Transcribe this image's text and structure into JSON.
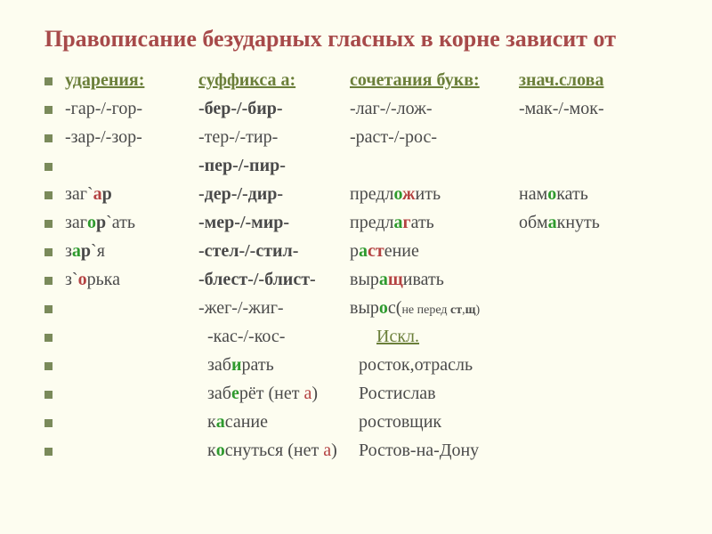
{
  "title": "Правописание безударных гласных в корне зависит от",
  "colors": {
    "background": "#fdfdf0",
    "title": "#a74a4a",
    "bullet": "#7a8a5a",
    "olive": "#6b7f3a",
    "red": "#b44242",
    "green": "#2e9a2e",
    "text": "#4a4a4a"
  },
  "fontsize": {
    "title": 26,
    "body": 20,
    "sub": 14
  },
  "header": {
    "c1": "ударения:",
    "c2": "суффикса а:",
    "c3": "сочетания букв:",
    "c4": "знач.слова"
  },
  "rows": [
    {
      "c1": [
        {
          "t": "-гар-/-гор-"
        }
      ],
      "c2": [
        {
          "t": "-бер-/-бир-",
          "cls": "bold"
        }
      ],
      "c3": [
        {
          "t": "-лаг-/-лож-"
        }
      ],
      "c4": [
        {
          "t": "-мак-/-мок-"
        }
      ]
    },
    {
      "c1": [
        {
          "t": "-зар-/-зор-"
        }
      ],
      "c2": [
        {
          "t": "-тер-/-тир-"
        }
      ],
      "c3": [
        {
          "t": "-раст-/-рос-"
        }
      ],
      "c4": []
    },
    {
      "c1": [],
      "c2": [
        {
          "t": "-пер-/-пир-",
          "cls": "bold"
        }
      ],
      "c3": [],
      "c4": []
    },
    {
      "c1": [
        {
          "t": "заг`"
        },
        {
          "t": "а",
          "cls": "redb"
        },
        {
          "t": "р",
          "cls": "bold"
        }
      ],
      "c2": [
        {
          "t": "-дер-/-дир-",
          "cls": "bold"
        }
      ],
      "c3": [
        {
          "t": "предл"
        },
        {
          "t": "о",
          "cls": "greenb"
        },
        {
          "t": "ж",
          "cls": "redb"
        },
        {
          "t": "ить"
        }
      ],
      "c4": [
        {
          "t": "нам"
        },
        {
          "t": "о",
          "cls": "greenb"
        },
        {
          "t": "кать"
        }
      ]
    },
    {
      "c1": [
        {
          "t": "заг"
        },
        {
          "t": "о",
          "cls": "greenb"
        },
        {
          "t": "р",
          "cls": "bold"
        },
        {
          "t": "`ать"
        }
      ],
      "c2": [
        {
          "t": "-мер-/-мир-",
          "cls": "bold"
        }
      ],
      "c3": [
        {
          "t": "предл"
        },
        {
          "t": "а",
          "cls": "greenb"
        },
        {
          "t": "г",
          "cls": "redb"
        },
        {
          "t": "ать"
        }
      ],
      "c4": [
        {
          "t": "обм"
        },
        {
          "t": "а",
          "cls": "greenb"
        },
        {
          "t": "кнуть"
        }
      ]
    },
    {
      "c1": [
        {
          "t": "з"
        },
        {
          "t": "а",
          "cls": "greenb"
        },
        {
          "t": "р",
          "cls": "bold"
        },
        {
          "t": "`я"
        }
      ],
      "c2": [
        {
          "t": "-стел-/-стил-",
          "cls": "bold"
        }
      ],
      "c3": [
        {
          "t": "р"
        },
        {
          "t": "а",
          "cls": "greenb"
        },
        {
          "t": "ст",
          "cls": "redb"
        },
        {
          "t": "ение"
        }
      ],
      "c4": []
    },
    {
      "c1": [
        {
          "t": "з`"
        },
        {
          "t": "о",
          "cls": "redb"
        },
        {
          "t": "рька"
        }
      ],
      "c2": [
        {
          "t": "-блест-/-блист-",
          "cls": "bold"
        }
      ],
      "c3": [
        {
          "t": "выр"
        },
        {
          "t": "а",
          "cls": "greenb"
        },
        {
          "t": "щ",
          "cls": "redb"
        },
        {
          "t": "ивать"
        }
      ],
      "c4": []
    },
    {
      "c1": [],
      "c2": [
        {
          "t": "-жег-/-жиг-"
        }
      ],
      "c3": [
        {
          "t": "выр"
        },
        {
          "t": "о",
          "cls": "greenb"
        },
        {
          "t": "с("
        },
        {
          "t": "не перед ",
          "cls": "sub"
        },
        {
          "t": "ст",
          "cls": "sub bold"
        },
        {
          "t": ",",
          "cls": "sub"
        },
        {
          "t": "щ",
          "cls": "sub bold"
        },
        {
          "t": ")",
          "cls": "sub"
        }
      ],
      "c4": []
    },
    {
      "c1": [],
      "c2": [
        {
          "t": "-кас-/-кос-"
        }
      ],
      "c3": [
        {
          "t": "Искл.",
          "cls": "olive udash"
        }
      ],
      "c4": []
    },
    {
      "c1": [],
      "c2": [
        {
          "t": "заб"
        },
        {
          "t": "и",
          "cls": "greenb"
        },
        {
          "t": "рать"
        }
      ],
      "c3": [
        {
          "t": "росток,отрасль"
        }
      ],
      "c4": []
    },
    {
      "c1": [],
      "c2": [
        {
          "t": "заб"
        },
        {
          "t": "е",
          "cls": "greenb"
        },
        {
          "t": "рёт (нет "
        },
        {
          "t": "а",
          "cls": "red"
        },
        {
          "t": ")"
        }
      ],
      "c3": [
        {
          "t": "Ростислав"
        }
      ],
      "c4": []
    },
    {
      "c1": [],
      "c2": [
        {
          "t": "к"
        },
        {
          "t": "а",
          "cls": "greenb"
        },
        {
          "t": "сание"
        }
      ],
      "c3": [
        {
          "t": "ростовщик"
        }
      ],
      "c4": []
    },
    {
      "c1": [],
      "c2": [
        {
          "t": "к"
        },
        {
          "t": "о",
          "cls": "greenb"
        },
        {
          "t": "снуться (нет "
        },
        {
          "t": "а",
          "cls": "red"
        },
        {
          "t": ")"
        }
      ],
      "c3": [
        {
          "t": "Ростов-на-Дону"
        }
      ],
      "c4": []
    }
  ],
  "row_shifts": {
    "c2_shift_from_row": 8,
    "c3_shift_rows": [
      8
    ]
  }
}
